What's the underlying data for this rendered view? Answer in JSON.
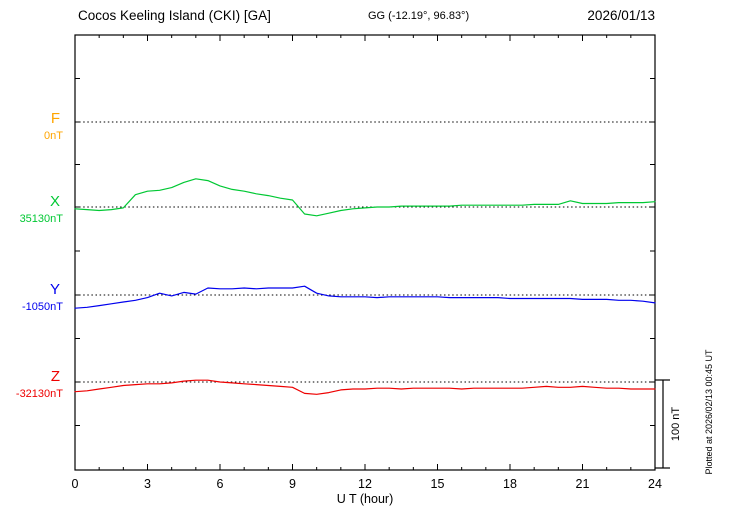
{
  "header": {
    "station": "Cocos Keeling Island (CKI)  [GA]",
    "coords": "GG (-12.19°,  96.83°)",
    "date": "2026/01/13"
  },
  "xaxis": {
    "label": "U T (hour)",
    "min": 0,
    "max": 24,
    "ticks": [
      0,
      3,
      6,
      9,
      12,
      15,
      18,
      21,
      24
    ]
  },
  "scale_bar": {
    "label": "100 nT",
    "span_nT": 100
  },
  "footer_note": "Plotted at 2026/02/13 00:45 UT",
  "chart_data": {
    "type": "line",
    "title": "Cocos Keeling Island (CKI) [GA] magnetogram 2026/01/13",
    "xlabel": "U T (hour)",
    "x_start": 0,
    "x_step": 0.5,
    "x_range": [
      0,
      24
    ],
    "y_scale_note": "values are offsets in nT from each channel baseline; scale bar = 100 nT",
    "legend_position": "left-margin channel labels",
    "grid": "dotted baseline per channel",
    "series": [
      {
        "name": "F",
        "color": "#FFA500",
        "baseline_nT": 0,
        "baseline_label": "0nT",
        "values": []
      },
      {
        "name": "X",
        "color": "#00C833",
        "baseline_nT": 35130,
        "baseline_label": "35130nT",
        "values": [
          -2,
          -3,
          -4,
          -3,
          -1,
          14,
          18,
          19,
          22,
          28,
          32,
          30,
          24,
          20,
          18,
          15,
          13,
          10,
          8,
          -8,
          -10,
          -7,
          -4,
          -2,
          -1,
          0,
          0,
          1,
          1,
          1,
          1,
          1,
          2,
          2,
          2,
          2,
          2,
          2,
          3,
          3,
          3,
          7,
          4,
          4,
          4,
          5,
          5,
          5,
          6
        ]
      },
      {
        "name": "Y",
        "color": "#0000EE",
        "baseline_nT": -1050,
        "baseline_label": "-1050nT",
        "values": [
          -15,
          -14,
          -12,
          -10,
          -8,
          -6,
          -3,
          2,
          -1,
          3,
          1,
          8,
          7,
          7,
          8,
          7,
          8,
          8,
          8,
          10,
          2,
          -1,
          -2,
          -2,
          -2,
          -3,
          -2,
          -2,
          -2,
          -2,
          -2,
          -3,
          -3,
          -3,
          -3,
          -3,
          -4,
          -4,
          -4,
          -4,
          -4,
          -4,
          -5,
          -5,
          -5,
          -6,
          -6,
          -7,
          -9
        ]
      },
      {
        "name": "Z",
        "color": "#EE0000",
        "baseline_nT": -32130,
        "baseline_label": "-32130nT",
        "values": [
          -11,
          -10,
          -8,
          -6,
          -4,
          -3,
          -2,
          -2,
          -1,
          1,
          2,
          2,
          0,
          -1,
          -2,
          -3,
          -4,
          -5,
          -6,
          -13,
          -14,
          -12,
          -9,
          -8,
          -8,
          -7,
          -7,
          -8,
          -7,
          -7,
          -7,
          -7,
          -8,
          -7,
          -7,
          -7,
          -7,
          -7,
          -6,
          -5,
          -6,
          -6,
          -5,
          -6,
          -7,
          -7,
          -8,
          -8,
          -8
        ]
      }
    ]
  }
}
